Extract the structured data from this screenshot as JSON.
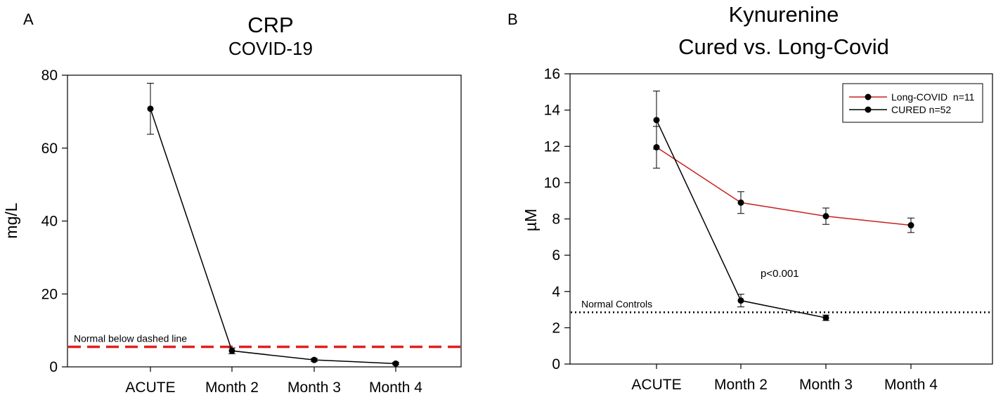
{
  "chart_data": [
    {
      "panel": "A",
      "type": "line",
      "title": "CRP",
      "subtitle": "COVID-19",
      "xlabel": "",
      "ylabel": "mg/L",
      "categories": [
        "ACUTE",
        "Month 2",
        "Month 3",
        "Month 4"
      ],
      "ylim": [
        0,
        80
      ],
      "yticks": [
        0,
        20,
        40,
        60,
        80
      ],
      "grid": false,
      "series": [
        {
          "name": "CRP",
          "color": "#000000",
          "values": [
            70.8,
            4.4,
            1.9,
            0.9
          ],
          "errors": [
            7.0,
            0.8,
            0.4,
            0.3
          ]
        }
      ],
      "reference_line": {
        "value": 5.5,
        "label": "Normal below dashed line",
        "color": "#e02020",
        "style": "dashed"
      }
    },
    {
      "panel": "B",
      "type": "line",
      "title": "Kynurenine",
      "subtitle": "Cured vs. Long-Covid",
      "xlabel": "",
      "ylabel": "µM",
      "categories": [
        "ACUTE",
        "Month 2",
        "Month 3",
        "Month 4"
      ],
      "ylim": [
        0,
        16
      ],
      "yticks": [
        0,
        2,
        4,
        6,
        8,
        10,
        12,
        14,
        16
      ],
      "grid": false,
      "legend_position": "top-right",
      "series": [
        {
          "name": "Long-COVID  n=11",
          "color": "#c8201e",
          "values": [
            11.95,
            8.9,
            8.15,
            7.65
          ],
          "errors": [
            1.15,
            0.6,
            0.45,
            0.4
          ]
        },
        {
          "name": "CURED n=52",
          "color": "#000000",
          "values": [
            13.45,
            3.5,
            2.55,
            null
          ],
          "errors": [
            1.6,
            0.35,
            0.15,
            null
          ]
        }
      ],
      "reference_line": {
        "value": 2.85,
        "label": "Normal Controls",
        "color": "#000000",
        "style": "dotted"
      },
      "annotation": "p<0.001"
    }
  ]
}
